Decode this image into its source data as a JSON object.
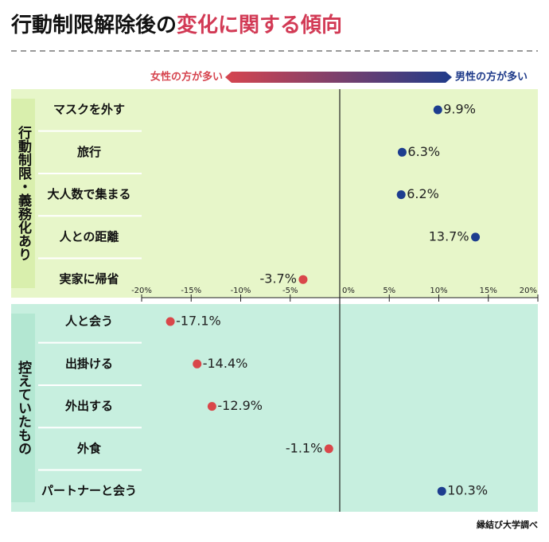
{
  "chart_data": {
    "type": "dot",
    "title": "行動制限解除後の",
    "title_highlight": "変化に関する傾向",
    "legend": {
      "left": "女性の方が多い",
      "right": "男性の方が多い"
    },
    "groups": [
      {
        "name": "行動制限・義務化あり",
        "categories": [
          "マスクを外す",
          "旅行",
          "大人数で集まる",
          "人との距離",
          "実家に帰省"
        ],
        "values": [
          9.9,
          6.3,
          6.2,
          13.7,
          -3.7
        ],
        "value_labels": [
          "9.9%",
          "6.3%",
          "6.2%",
          "13.7%",
          "-3.7%"
        ]
      },
      {
        "name": "控えていたもの",
        "categories": [
          "人と会う",
          "出掛ける",
          "外出する",
          "外食",
          "パートナーと会う"
        ],
        "values": [
          -17.1,
          -14.4,
          -12.9,
          -1.1,
          10.3
        ],
        "value_labels": [
          "-17.1%",
          "-14.4%",
          "-12.9%",
          "-1.1%",
          "10.3%"
        ]
      }
    ],
    "xlim": [
      -20,
      20
    ],
    "xticks": [
      {
        "value": -20,
        "label": "-20%"
      },
      {
        "value": -15,
        "label": "-15%"
      },
      {
        "value": -10,
        "label": "-10%"
      },
      {
        "value": -5,
        "label": "-5%"
      },
      {
        "value": 0,
        "label": "0%"
      },
      {
        "value": 5,
        "label": "5%"
      },
      {
        "value": 10,
        "label": "10%"
      },
      {
        "value": 15,
        "label": "15%"
      },
      {
        "value": 20,
        "label": "20%"
      }
    ],
    "colors": {
      "positive": "#1d3d8f",
      "negative": "#d9474a"
    },
    "source": "縁結び大学調べ"
  }
}
